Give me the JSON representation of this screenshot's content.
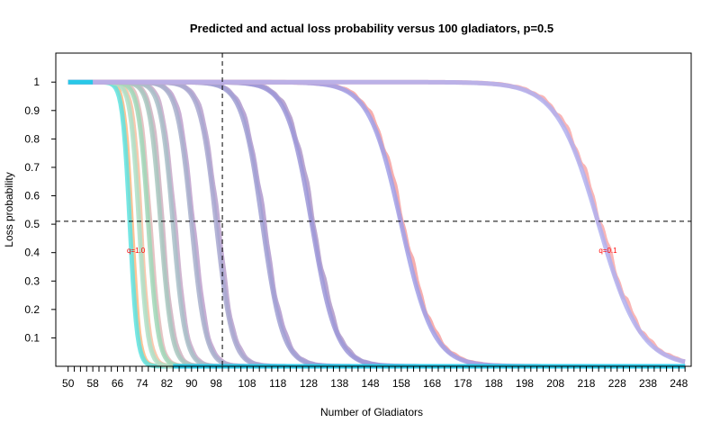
{
  "chart_data": {
    "type": "line",
    "title": "Predicted and actual loss probability versus 100 gladiators, p=0.5",
    "xlabel": "Number of Gladiators",
    "ylabel": "Loss probability",
    "xlim": [
      46,
      252
    ],
    "ylim": [
      0,
      1.08
    ],
    "x_tick_labels": [
      "50",
      "58",
      "66",
      "74",
      "82",
      "90",
      "98",
      "108",
      "118",
      "128",
      "138",
      "148",
      "158",
      "168",
      "178",
      "188",
      "198",
      "208",
      "218",
      "228",
      "238",
      "248"
    ],
    "y_tick_labels": [
      "1",
      "0.9",
      "0.8",
      "0.7",
      "0.6",
      "0.5",
      "0.4",
      "0.3",
      "0.2",
      "0.1"
    ],
    "minor_tick_step": 2,
    "reference_lines": [
      {
        "orientation": "horizontal",
        "value": 0.5,
        "style": "dashed"
      },
      {
        "orientation": "vertical",
        "value": 100,
        "style": "dashed"
      }
    ],
    "annotations": [
      {
        "text": "q=1.0",
        "x": 72,
        "y": 0.4
      },
      {
        "text": "q=0.1",
        "x": 225,
        "y": 0.4
      }
    ],
    "curve_colors": {
      "predicted": [
        "#5ee3e0",
        "#aee0c8",
        "#a0d8b8",
        "#a8c8c0",
        "#a8c0c8",
        "#a8b0cc",
        "#a8a8d0",
        "#a0a0d4",
        "#9c98d8",
        "#a0a0e8",
        "#b0b0f0"
      ],
      "actual": [
        "#ffb880",
        "#f8c0a0",
        "#e0b8b8",
        "#d0b0c0",
        "#c8a8c8",
        "#c0a0cc",
        "#b8a0cc",
        "#b098cc",
        "#b098c8",
        "#f4a0a0",
        "#f8a8a8"
      ]
    },
    "flat_line_color": "#28c8e8",
    "series": [
      {
        "midpoint": 70,
        "scale": 1.2
      },
      {
        "midpoint": 73,
        "scale": 1.4
      },
      {
        "midpoint": 76,
        "scale": 1.6
      },
      {
        "midpoint": 80,
        "scale": 1.8
      },
      {
        "midpoint": 84,
        "scale": 2.0
      },
      {
        "midpoint": 90,
        "scale": 2.3
      },
      {
        "midpoint": 98,
        "scale": 2.6
      },
      {
        "midpoint": 113,
        "scale": 3.3
      },
      {
        "midpoint": 129,
        "scale": 4.0
      },
      {
        "midpoint": 158,
        "scale": 5.2
      },
      {
        "midpoint": 222,
        "scale": 6.8
      }
    ]
  }
}
